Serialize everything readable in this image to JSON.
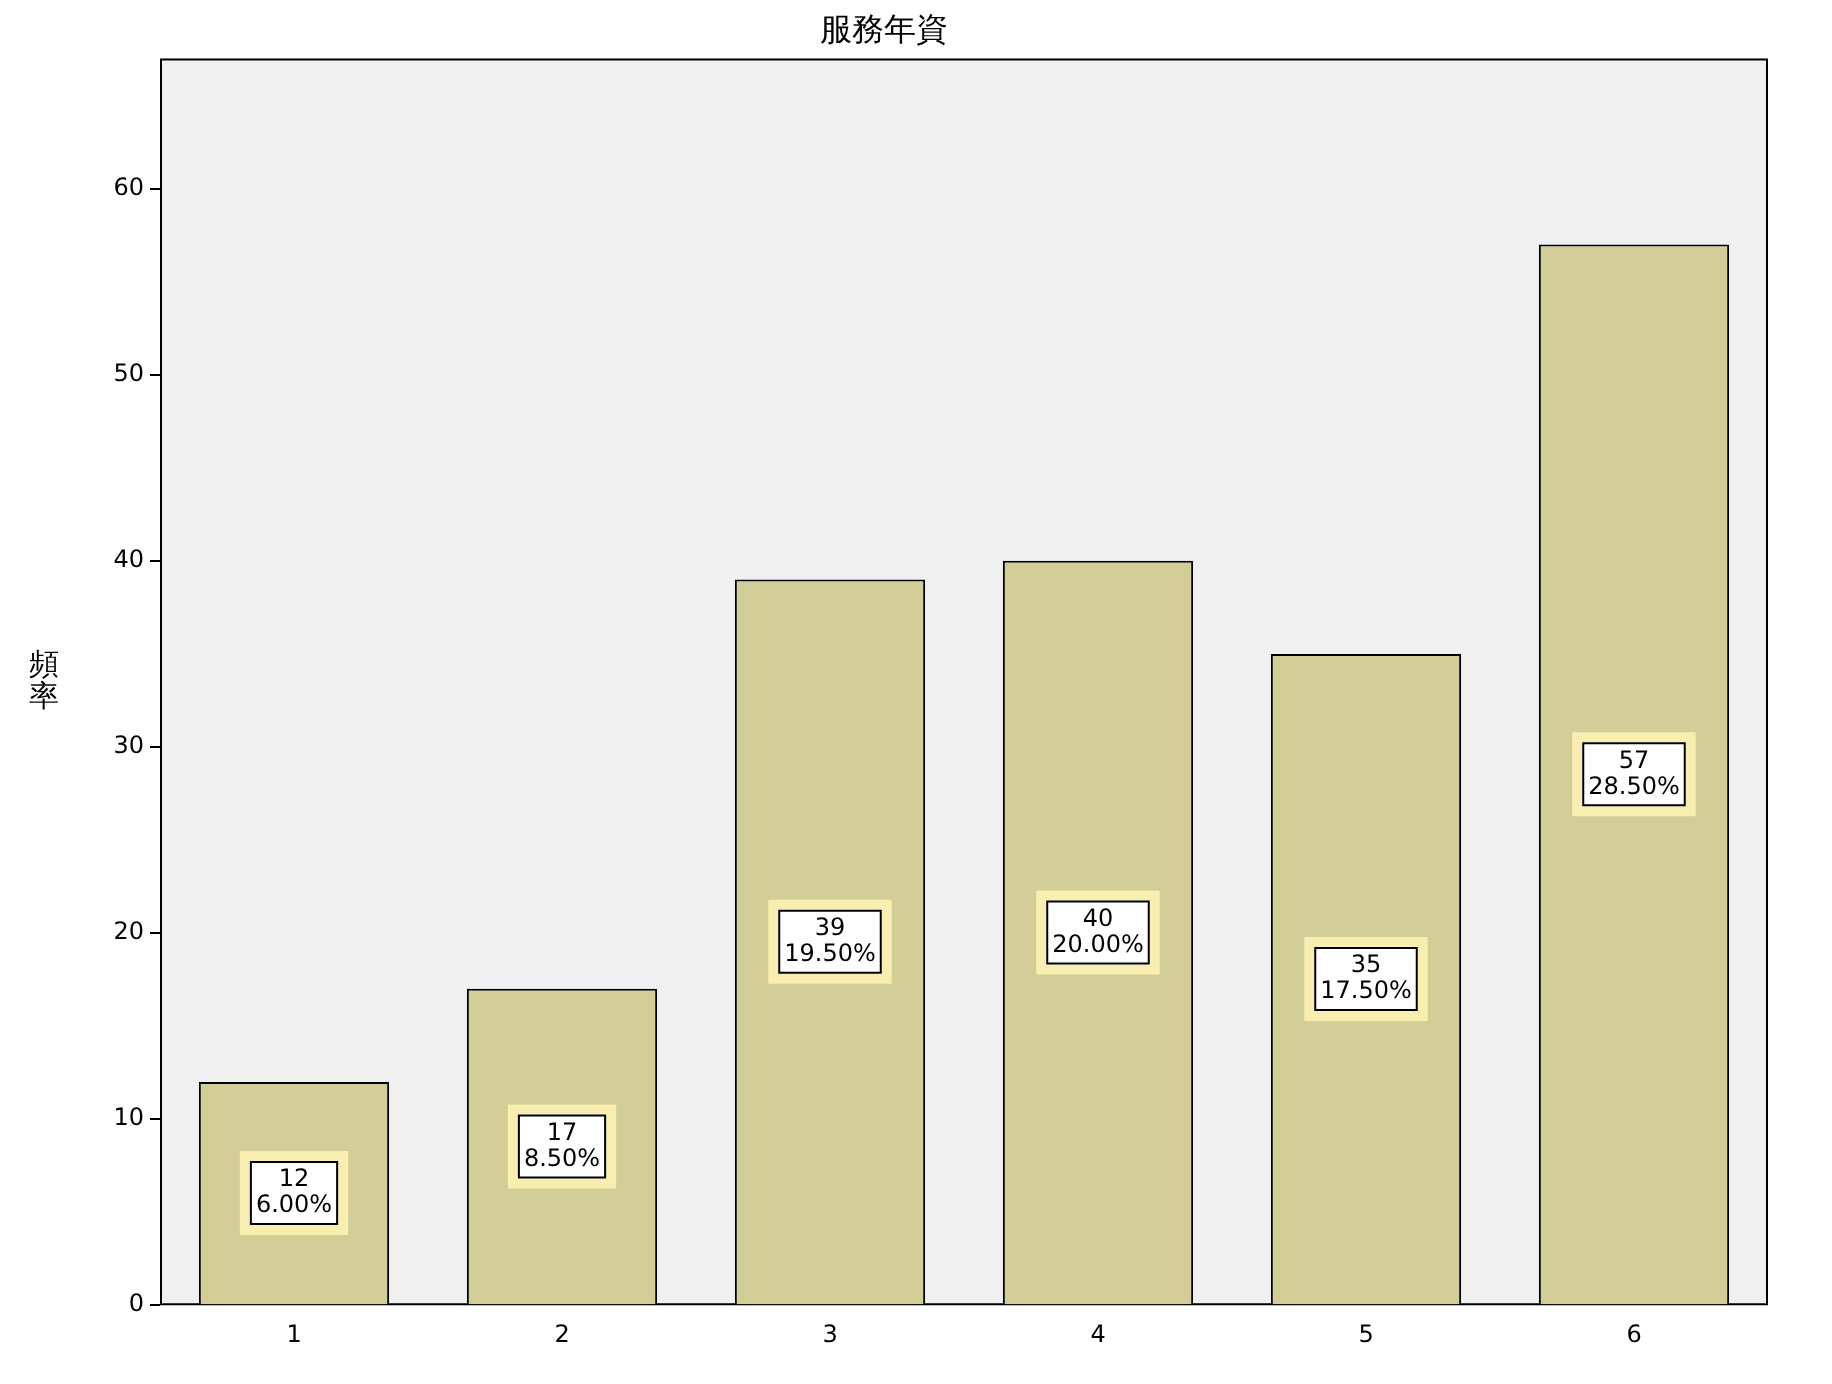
{
  "chart_data": {
    "type": "bar",
    "title": "服務年資",
    "ylabel": "頻率",
    "categories": [
      "1",
      "2",
      "3",
      "4",
      "5",
      "6"
    ],
    "values": [
      12,
      17,
      39,
      40,
      35,
      57
    ],
    "color": "#d3ce97",
    "value_labels": [
      "12\n6.00%",
      "17\n8.50%",
      "39\n19.50%",
      "40\n20.00%",
      "35\n17.50%",
      "57\n28.50%"
    ],
    "ylim": [
      0,
      67
    ],
    "yticks": [
      0,
      10,
      20,
      30,
      40,
      50,
      60
    ],
    "grid": false,
    "legend": false
  }
}
